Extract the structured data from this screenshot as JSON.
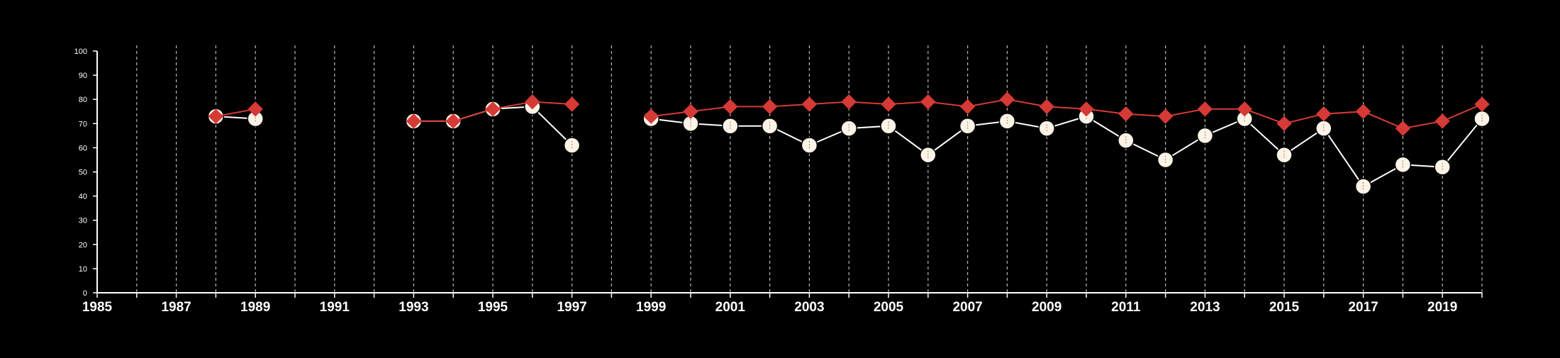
{
  "colors": {
    "background": "#000000",
    "axis": "#ffffff",
    "grid": "#bbbbbb",
    "series_white": "#fdf3e7",
    "series_red": "#d63a36"
  },
  "chart_data": {
    "type": "line",
    "title": "",
    "xlabel": "",
    "ylabel": "",
    "xlim": [
      1985,
      2020
    ],
    "ylim": [
      0,
      100
    ],
    "x_ticks": [
      "1985",
      "1987",
      "1989",
      "1991",
      "1993",
      "1995",
      "1997",
      "1999",
      "2001",
      "2003",
      "2005",
      "2007",
      "2009",
      "2011",
      "2013",
      "2015",
      "2017",
      "2019"
    ],
    "y_ticks": [
      "0",
      "10",
      "20",
      "30",
      "40",
      "50",
      "60",
      "70",
      "80",
      "90",
      "100"
    ],
    "grid": "vertical dashed lines at every year",
    "legend": "none",
    "series": [
      {
        "marker": "circle",
        "color": "#fdf3e7",
        "points": [
          [
            1988,
            73
          ],
          [
            1989,
            72
          ],
          [
            null,
            null
          ],
          [
            1993,
            71
          ],
          [
            1994,
            71
          ],
          [
            1995,
            76
          ],
          [
            1996,
            77
          ],
          [
            1997,
            61
          ],
          [
            null,
            null
          ],
          [
            1999,
            72
          ],
          [
            2000,
            70
          ],
          [
            2001,
            69
          ],
          [
            2002,
            69
          ],
          [
            2003,
            61
          ],
          [
            2004,
            68
          ],
          [
            2005,
            69
          ],
          [
            2006,
            57
          ],
          [
            2007,
            69
          ],
          [
            2008,
            71
          ],
          [
            2009,
            68
          ],
          [
            2010,
            73
          ],
          [
            2011,
            63
          ],
          [
            2012,
            55
          ],
          [
            2013,
            65
          ],
          [
            2014,
            72
          ],
          [
            2015,
            57
          ],
          [
            2016,
            68
          ],
          [
            2017,
            44
          ],
          [
            2018,
            53
          ],
          [
            2019,
            52
          ],
          [
            2020,
            72
          ]
        ]
      },
      {
        "marker": "diamond",
        "color": "#d63a36",
        "points": [
          [
            1988,
            73
          ],
          [
            1989,
            76
          ],
          [
            null,
            null
          ],
          [
            1993,
            71
          ],
          [
            1994,
            71
          ],
          [
            1995,
            76
          ],
          [
            1996,
            79
          ],
          [
            1997,
            78
          ],
          [
            null,
            null
          ],
          [
            1999,
            73
          ],
          [
            2000,
            75
          ],
          [
            2001,
            77
          ],
          [
            2002,
            77
          ],
          [
            2003,
            78
          ],
          [
            2004,
            79
          ],
          [
            2005,
            78
          ],
          [
            2006,
            79
          ],
          [
            2007,
            77
          ],
          [
            2008,
            80
          ],
          [
            2009,
            77
          ],
          [
            2010,
            76
          ],
          [
            2011,
            74
          ],
          [
            2012,
            73
          ],
          [
            2013,
            76
          ],
          [
            2014,
            76
          ],
          [
            2015,
            70
          ],
          [
            2016,
            74
          ],
          [
            2017,
            75
          ],
          [
            2018,
            68
          ],
          [
            2019,
            71
          ],
          [
            2020,
            78
          ]
        ]
      }
    ]
  }
}
